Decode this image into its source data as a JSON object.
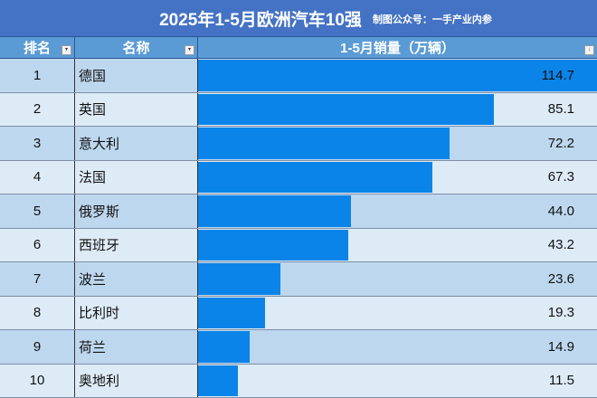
{
  "header": {
    "title": "2025年1-5月欧洲汽车10强",
    "subtitle": "制图公众号：一手产业内参"
  },
  "columns": [
    "排名",
    "名称",
    "1-5月销量（万辆）"
  ],
  "colors": {
    "title_bg": "#4472c4",
    "header_bg": "#5b9bd5",
    "bar": "#0a84e8",
    "row_odd": "#bdd7ee",
    "row_even": "#ddebf7"
  },
  "rows": [
    {
      "rank": "1",
      "name": "德国",
      "value": "114.7"
    },
    {
      "rank": "2",
      "name": "英国",
      "value": "85.1"
    },
    {
      "rank": "3",
      "name": "意大利",
      "value": "72.2"
    },
    {
      "rank": "4",
      "name": "法国",
      "value": "67.3"
    },
    {
      "rank": "5",
      "name": "俄罗斯",
      "value": "44.0"
    },
    {
      "rank": "6",
      "name": "西班牙",
      "value": "43.2"
    },
    {
      "rank": "7",
      "name": "波兰",
      "value": "23.6"
    },
    {
      "rank": "8",
      "name": "比利时",
      "value": "19.3"
    },
    {
      "rank": "9",
      "name": "荷兰",
      "value": "14.9"
    },
    {
      "rank": "10",
      "name": "奥地利",
      "value": "11.5"
    }
  ],
  "chart_data": {
    "type": "bar",
    "orientation": "horizontal",
    "title": "2025年1-5月欧洲汽车10强",
    "subtitle": "制图公众号：一手产业内参",
    "categories": [
      "德国",
      "英国",
      "意大利",
      "法国",
      "俄罗斯",
      "西班牙",
      "波兰",
      "比利时",
      "荷兰",
      "奥地利"
    ],
    "values": [
      114.7,
      85.1,
      72.2,
      67.3,
      44.0,
      43.2,
      23.6,
      19.3,
      14.9,
      11.5
    ],
    "xlabel": "1-5月销量（万辆）",
    "ylabel": "名称",
    "xlim": [
      0,
      114.7
    ],
    "grid": false,
    "legend": "none"
  }
}
